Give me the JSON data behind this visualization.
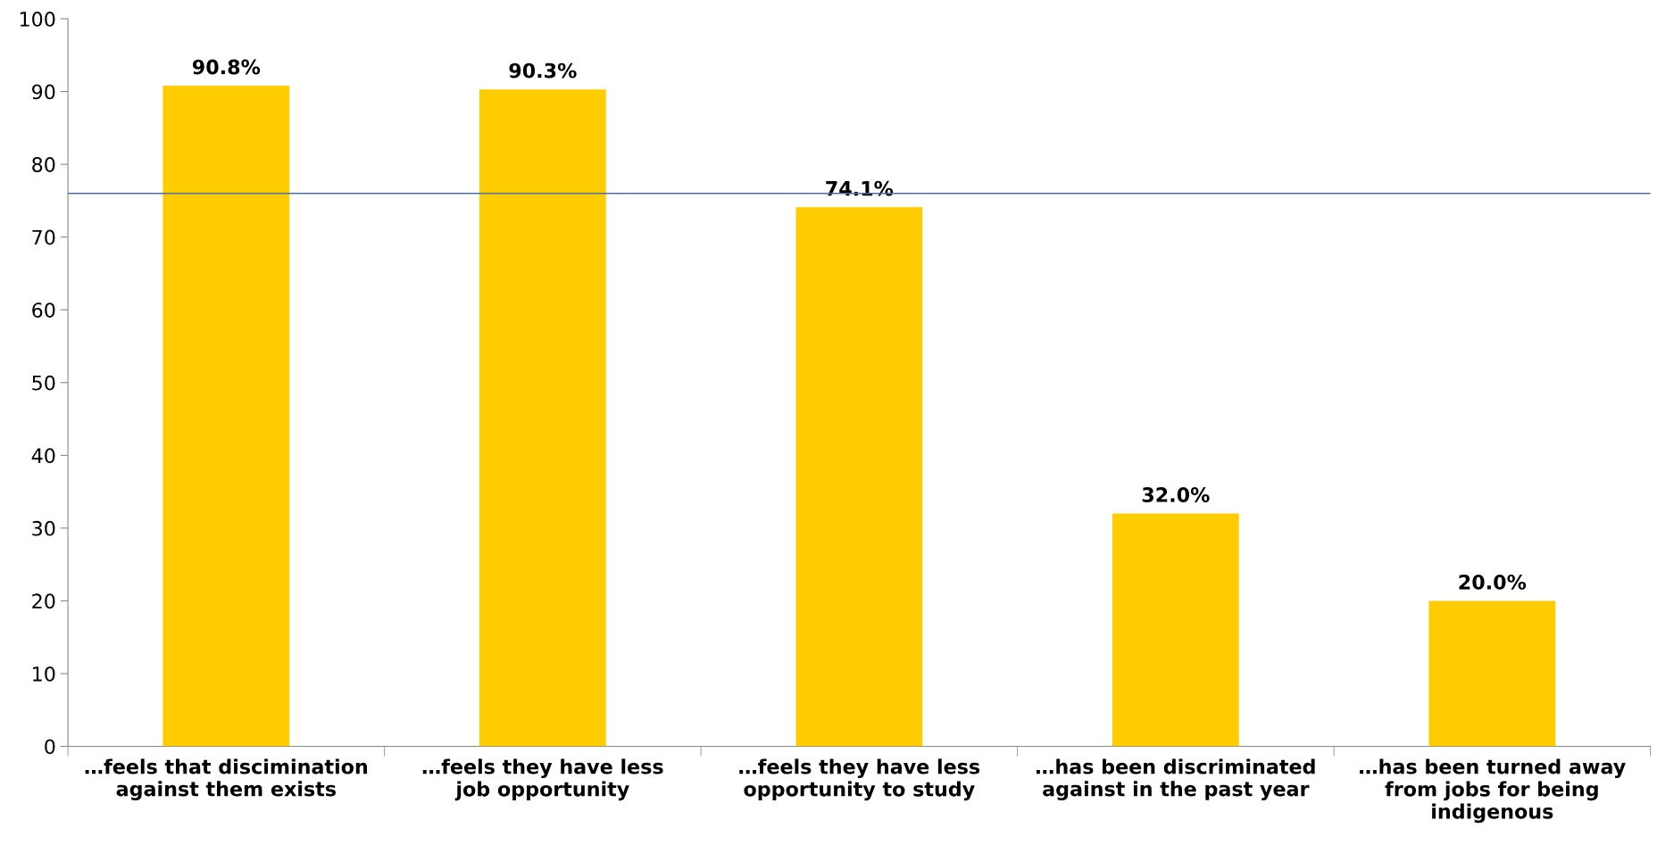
{
  "chart_data": {
    "type": "bar",
    "categories": [
      "…feels that discimination\nagainst them exists",
      "…feels they have less\njob opportunity",
      "…feels they have less\nopportunity to study",
      "…has been discriminated\nagainst in the past year",
      "…has been turned away\nfrom jobs for being\nindigenous"
    ],
    "values": [
      90.8,
      90.3,
      74.1,
      32.0,
      20.0
    ],
    "value_labels": [
      "90.8%",
      "90.3%",
      "74.1%",
      "32.0%",
      "20.0%"
    ],
    "color": "#ffcc00",
    "ylim": [
      0,
      100
    ],
    "yticks": [
      0,
      10,
      20,
      30,
      40,
      50,
      60,
      70,
      80,
      90,
      100
    ],
    "ref_lines": [
      {
        "axis": "y",
        "value": 76,
        "color": "#4a6fa5"
      }
    ],
    "grid": false
  }
}
